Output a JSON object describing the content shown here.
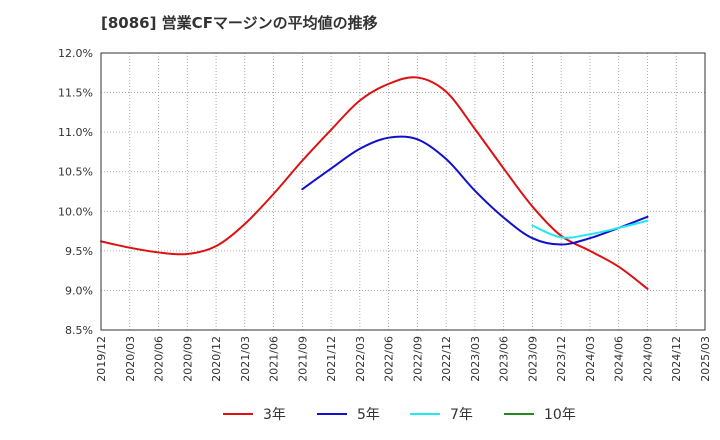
{
  "chart_data": {
    "type": "line",
    "title": "[8086]  営業CFマージンの平均値の推移",
    "xlabel": "",
    "ylabel": "",
    "ylim": [
      8.5,
      12.0
    ],
    "yticks": [
      "12.0%",
      "11.5%",
      "11.0%",
      "10.5%",
      "10.0%",
      "9.5%",
      "9.0%",
      "8.5%"
    ],
    "xticks": [
      "2019/12",
      "2020/03",
      "2020/06",
      "2020/09",
      "2020/12",
      "2021/03",
      "2021/06",
      "2021/09",
      "2021/12",
      "2022/03",
      "2022/06",
      "2022/09",
      "2022/12",
      "2023/03",
      "2023/06",
      "2023/09",
      "2023/12",
      "2024/03",
      "2024/06",
      "2024/09",
      "2024/12",
      "2025/03"
    ],
    "grid": true,
    "legend_position": "bottom",
    "series": [
      {
        "name": "3年",
        "color": "#dd1111",
        "x": [
          "2019/12",
          "2020/03",
          "2020/06",
          "2020/09",
          "2020/12",
          "2021/03",
          "2021/06",
          "2021/09",
          "2021/12",
          "2022/03",
          "2022/06",
          "2022/09",
          "2022/12",
          "2023/03",
          "2023/06",
          "2023/09",
          "2023/12",
          "2024/03",
          "2024/06",
          "2024/09"
        ],
        "values": [
          9.62,
          9.54,
          9.48,
          9.46,
          9.56,
          9.84,
          10.22,
          10.64,
          11.03,
          11.4,
          11.61,
          11.69,
          11.51,
          11.04,
          10.54,
          10.06,
          9.69,
          9.5,
          9.3,
          9.02
        ]
      },
      {
        "name": "5年",
        "color": "#1111cc",
        "x": [
          "2021/09",
          "2021/12",
          "2022/03",
          "2022/06",
          "2022/09",
          "2022/12",
          "2023/03",
          "2023/06",
          "2023/09",
          "2023/12",
          "2024/03",
          "2024/06",
          "2024/09"
        ],
        "values": [
          10.28,
          10.54,
          10.79,
          10.93,
          10.91,
          10.66,
          10.26,
          9.92,
          9.66,
          9.58,
          9.66,
          9.79,
          9.93
        ]
      },
      {
        "name": "7年",
        "color": "#22e8f0",
        "x": [
          "2023/09",
          "2023/12",
          "2024/03",
          "2024/06",
          "2024/09"
        ],
        "values": [
          9.82,
          9.67,
          9.71,
          9.79,
          9.88
        ]
      },
      {
        "name": "10年",
        "color": "#228822",
        "x": [],
        "values": []
      }
    ]
  }
}
